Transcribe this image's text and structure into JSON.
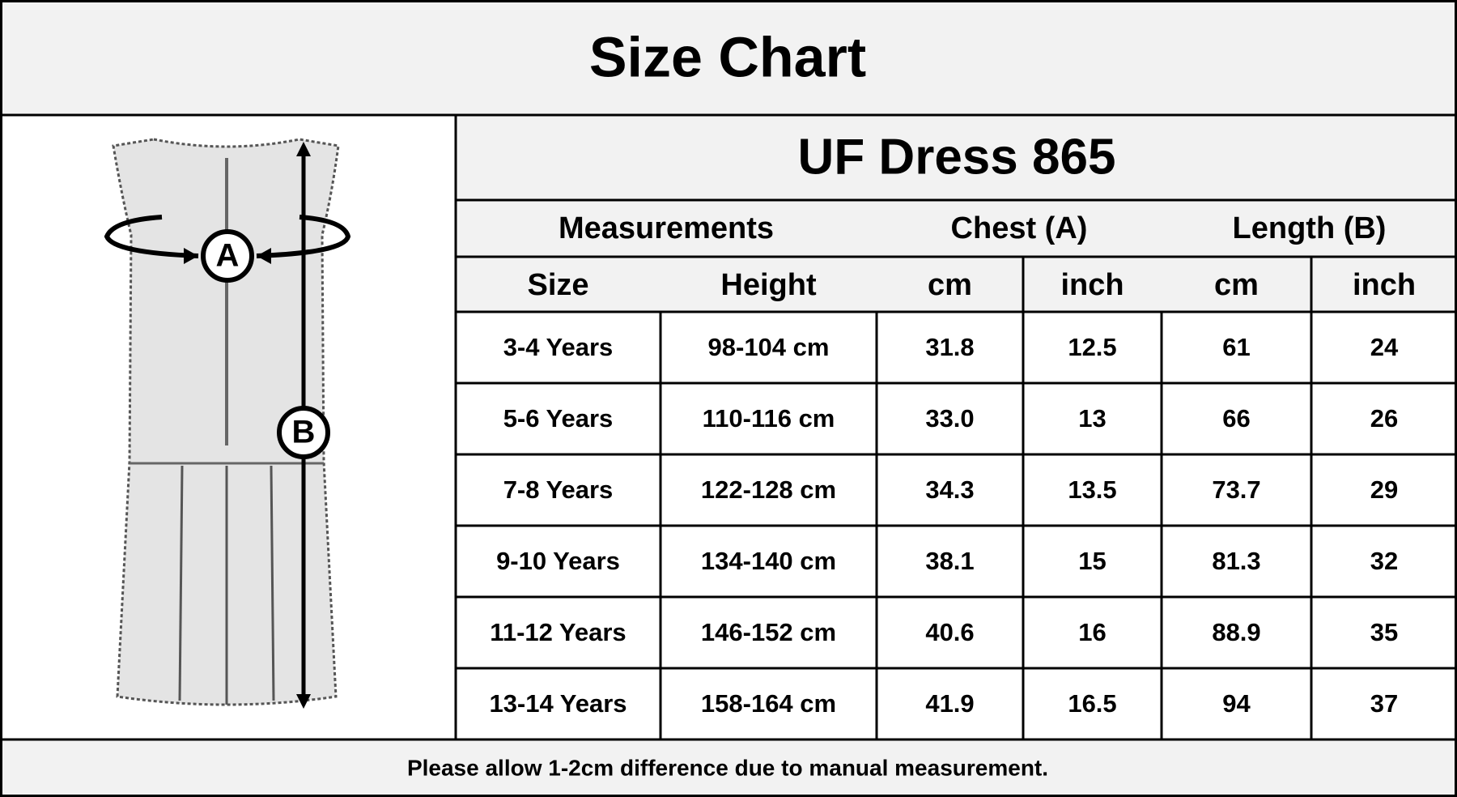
{
  "header": {
    "title": "Size Chart"
  },
  "illustration": {
    "labels": [
      "A",
      "B"
    ]
  },
  "table": {
    "title": "UF Dress 865",
    "groups": [
      "Measurements",
      "Chest (A)",
      "Length (B)"
    ],
    "columns": [
      "Size",
      "Height",
      "cm",
      "inch",
      "cm",
      "inch"
    ],
    "rows": [
      [
        "3-4 Years",
        "98-104 cm",
        "31.8",
        "12.5",
        "61",
        "24"
      ],
      [
        "5-6 Years",
        "110-116 cm",
        "33.0",
        "13",
        "66",
        "26"
      ],
      [
        "7-8 Years",
        "122-128 cm",
        "34.3",
        "13.5",
        "73.7",
        "29"
      ],
      [
        "9-10 Years",
        "134-140 cm",
        "38.1",
        "15",
        "81.3",
        "32"
      ],
      [
        "11-12 Years",
        "146-152 cm",
        "40.6",
        "16",
        "88.9",
        "35"
      ],
      [
        "13-14 Years",
        "158-164 cm",
        "41.9",
        "16.5",
        "94",
        "37"
      ]
    ]
  },
  "footer": {
    "note": "Please allow 1-2cm difference due to manual measurement."
  }
}
